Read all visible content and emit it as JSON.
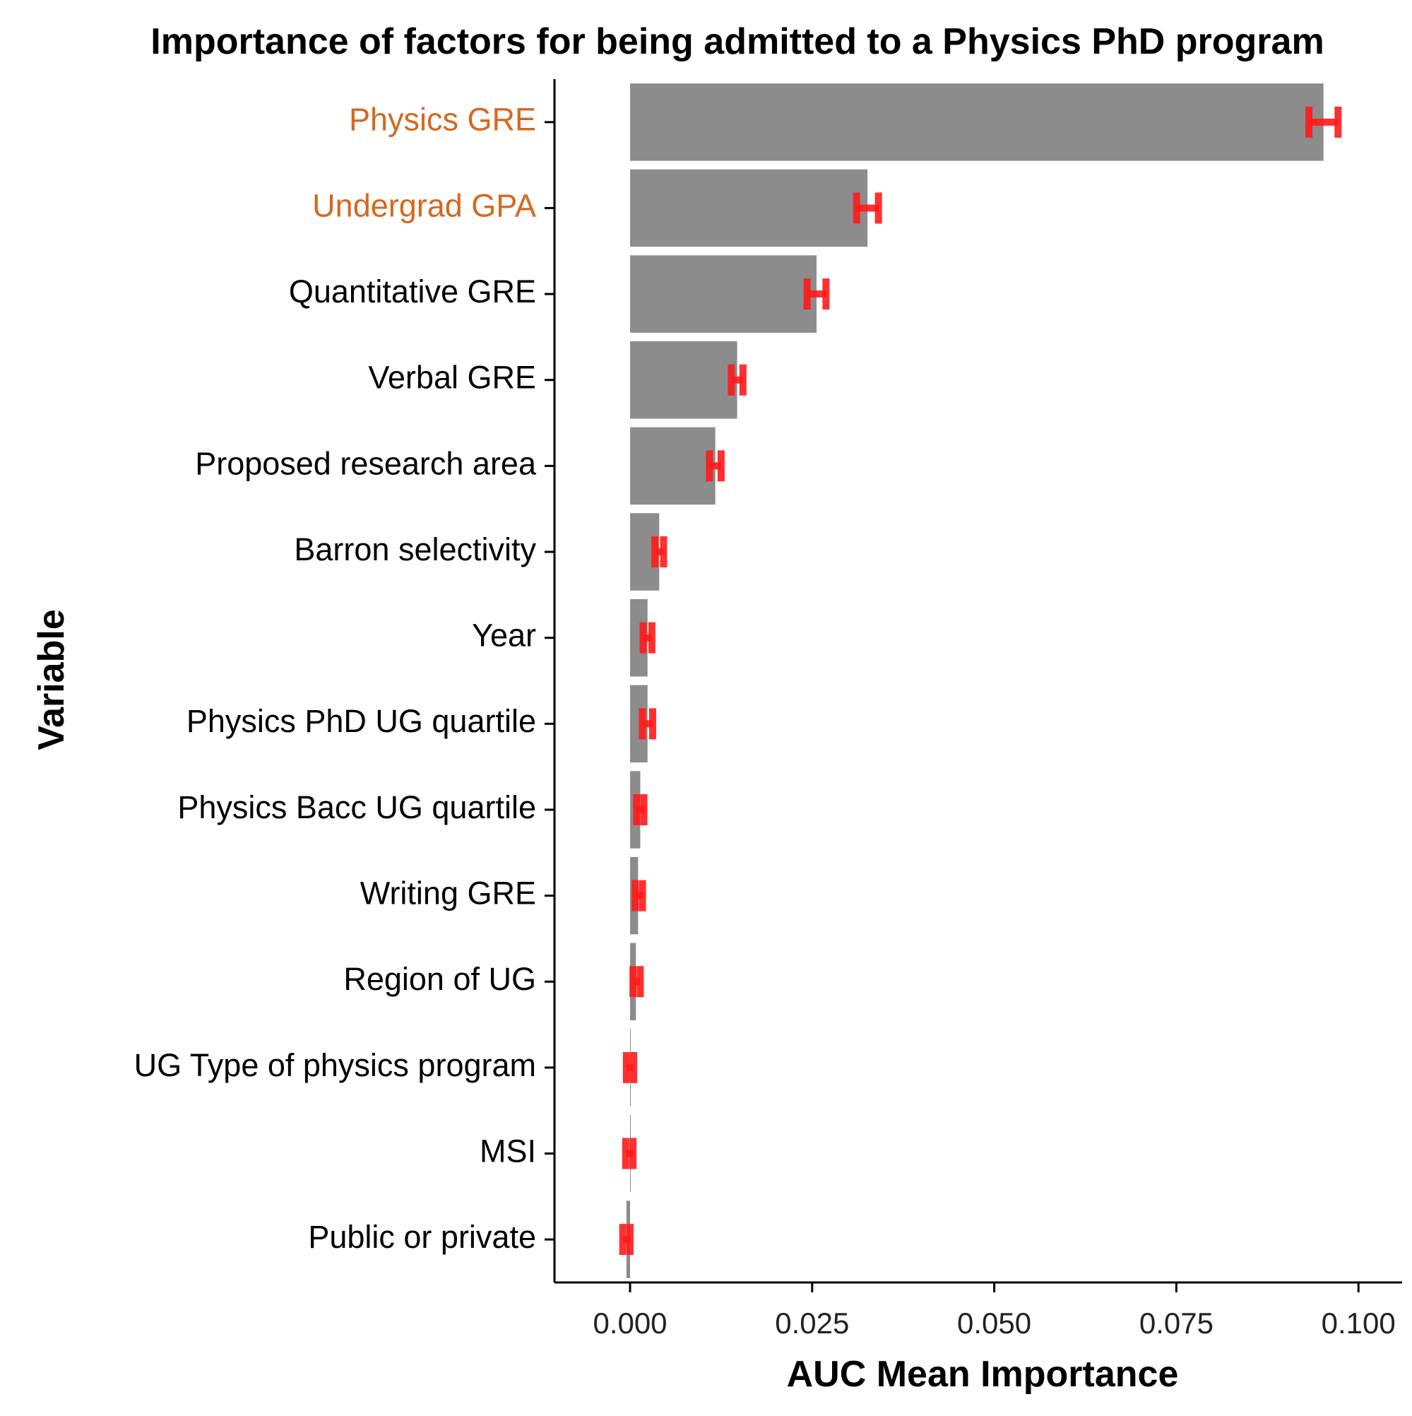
{
  "chart_data": {
    "type": "bar",
    "orientation": "horizontal",
    "title": "Importance of factors for being admitted to a Physics PhD program",
    "xlabel": "AUC Mean Importance",
    "ylabel": "Variable",
    "xlim": [
      -0.01,
      0.105
    ],
    "xticks": [
      0.0,
      0.025,
      0.05,
      0.075,
      0.1
    ],
    "xtick_labels": [
      "0.000",
      "0.025",
      "0.050",
      "0.075",
      "0.100"
    ],
    "grid": false,
    "legend": "none",
    "categories": [
      "Physics GRE",
      "Undergrad GPA",
      "Quantitative GRE",
      "Verbal GRE",
      "Proposed research area",
      "Barron selectivity",
      "Year",
      "Physics PhD UG quartile",
      "Physics Bacc UG quartile",
      "Writing GRE",
      "Region of UG",
      "UG Type of physics program",
      "MSI",
      "Public or private"
    ],
    "highlighted_categories": [
      "Physics GRE",
      "Undergrad GPA"
    ],
    "values": [
      0.0952,
      0.0326,
      0.0256,
      0.0147,
      0.0117,
      0.004,
      0.0024,
      0.0024,
      0.0014,
      0.0011,
      0.0008,
      0.0,
      0.0001,
      -0.0005
    ],
    "error_intervals": [
      [
        0.0932,
        0.0972
      ],
      [
        0.0311,
        0.0341
      ],
      [
        0.0243,
        0.0269
      ],
      [
        0.0139,
        0.0155
      ],
      [
        0.0109,
        0.0125
      ],
      [
        0.0034,
        0.0046
      ],
      [
        0.0018,
        0.003
      ],
      [
        0.0017,
        0.0031
      ],
      [
        0.0009,
        0.0019
      ],
      [
        0.0007,
        0.0017
      ],
      [
        0.0004,
        0.0014
      ],
      [
        -0.0005,
        0.0005
      ],
      [
        -0.0006,
        0.0004
      ],
      [
        -0.001,
        0.0
      ]
    ],
    "colors": {
      "bar": "#8c8c8c",
      "error_bar": "#ff1a1a",
      "highlight_label": "#d4691e",
      "label": "#000000",
      "axis": "#000000"
    }
  }
}
